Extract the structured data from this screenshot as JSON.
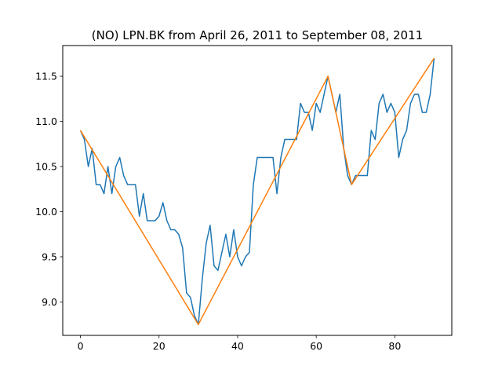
{
  "chart_data": {
    "type": "line",
    "title": "(NO) LPN.BK from April 26, 2011 to September 08, 2011",
    "xlabel": "",
    "ylabel": "",
    "xlim": [
      -4.5,
      94.5
    ],
    "ylim": [
      8.63,
      11.84
    ],
    "xticks": [
      0,
      20,
      40,
      60,
      80
    ],
    "yticks": [
      9.0,
      9.5,
      10.0,
      10.5,
      11.0,
      11.5
    ],
    "xtick_labels": [
      "0",
      "20",
      "40",
      "60",
      "80"
    ],
    "ytick_labels": [
      "9.0",
      "9.5",
      "10.0",
      "10.5",
      "11.0",
      "11.5"
    ],
    "grid": false,
    "legend": "none",
    "series": [
      {
        "color": "#1f77b4",
        "x": [
          0,
          1,
          2,
          3,
          4,
          5,
          6,
          7,
          8,
          9,
          10,
          11,
          12,
          13,
          14,
          15,
          16,
          17,
          18,
          19,
          20,
          21,
          22,
          23,
          24,
          25,
          26,
          27,
          28,
          29,
          30,
          31,
          32,
          33,
          34,
          35,
          36,
          37,
          38,
          39,
          40,
          41,
          42,
          43,
          44,
          45,
          46,
          47,
          48,
          49,
          50,
          51,
          52,
          53,
          54,
          55,
          56,
          57,
          58,
          59,
          60,
          61,
          62,
          63,
          64,
          65,
          66,
          67,
          68,
          69,
          70,
          71,
          72,
          73,
          74,
          75,
          76,
          77,
          78,
          79,
          80,
          81,
          82,
          83,
          84,
          85,
          86,
          87,
          88,
          89,
          90
        ],
        "y": [
          10.9,
          10.8,
          10.5,
          10.7,
          10.3,
          10.3,
          10.2,
          10.5,
          10.2,
          10.5,
          10.6,
          10.4,
          10.3,
          10.3,
          10.3,
          9.95,
          10.2,
          9.9,
          9.9,
          9.9,
          9.95,
          10.1,
          9.9,
          9.8,
          9.8,
          9.75,
          9.6,
          9.1,
          9.05,
          8.85,
          8.75,
          9.25,
          9.65,
          9.85,
          9.4,
          9.35,
          9.55,
          9.75,
          9.5,
          9.8,
          9.5,
          9.4,
          9.5,
          9.55,
          10.3,
          10.6,
          10.6,
          10.6,
          10.6,
          10.6,
          10.2,
          10.6,
          10.8,
          10.8,
          10.8,
          10.8,
          11.2,
          11.1,
          11.1,
          10.9,
          11.2,
          11.1,
          11.3,
          11.5,
          11.3,
          11.1,
          11.3,
          10.7,
          10.4,
          10.3,
          10.4,
          10.4,
          10.4,
          10.4,
          10.9,
          10.8,
          11.2,
          11.3,
          11.1,
          11.2,
          11.1,
          10.6,
          10.8,
          10.9,
          11.2,
          11.3,
          11.3,
          11.1,
          11.1,
          11.3,
          11.7
        ]
      },
      {
        "color": "#ff7f0e",
        "x": [
          0,
          30,
          63,
          69,
          90
        ],
        "y": [
          10.9,
          8.75,
          11.5,
          10.3,
          11.7
        ]
      }
    ]
  }
}
